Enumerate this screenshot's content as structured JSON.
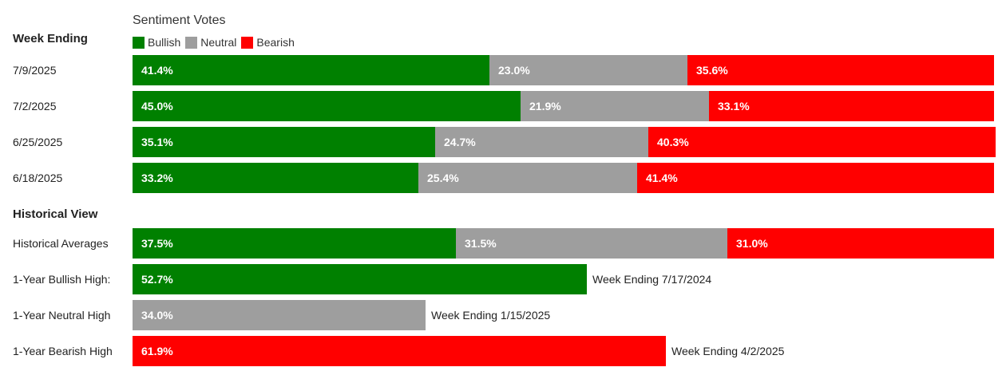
{
  "chart_data": {
    "type": "bar",
    "orientation": "horizontal",
    "stacked": true,
    "title": "Sentiment Votes",
    "category_axis_label": "Week Ending",
    "legend": {
      "placement": "top-left",
      "entries": [
        {
          "name": "Bullish",
          "color": "#008000"
        },
        {
          "name": "Neutral",
          "color": "#9e9e9e"
        },
        {
          "name": "Bearish",
          "color": "#ff0000"
        }
      ]
    },
    "xlim": [
      0,
      100
    ],
    "grid": false,
    "weekly": [
      {
        "label": "7/9/2025",
        "values": [
          {
            "series": "Bullish",
            "value": 41.4,
            "text": "41.4%"
          },
          {
            "series": "Neutral",
            "value": 23.0,
            "text": "23.0%"
          },
          {
            "series": "Bearish",
            "value": 35.6,
            "text": "35.6%"
          }
        ]
      },
      {
        "label": "7/2/2025",
        "values": [
          {
            "series": "Bullish",
            "value": 45.0,
            "text": "45.0%"
          },
          {
            "series": "Neutral",
            "value": 21.9,
            "text": "21.9%"
          },
          {
            "series": "Bearish",
            "value": 33.1,
            "text": "33.1%"
          }
        ]
      },
      {
        "label": "6/25/2025",
        "values": [
          {
            "series": "Bullish",
            "value": 35.1,
            "text": "35.1%"
          },
          {
            "series": "Neutral",
            "value": 24.7,
            "text": "24.7%"
          },
          {
            "series": "Bearish",
            "value": 40.3,
            "text": "40.3%"
          }
        ]
      },
      {
        "label": "6/18/2025",
        "values": [
          {
            "series": "Bullish",
            "value": 33.2,
            "text": "33.2%"
          },
          {
            "series": "Neutral",
            "value": 25.4,
            "text": "25.4%"
          },
          {
            "series": "Bearish",
            "value": 41.4,
            "text": "41.4%"
          }
        ]
      }
    ],
    "historical_title": "Historical View",
    "historical": [
      {
        "label": "Historical Averages",
        "values": [
          {
            "series": "Bullish",
            "value": 37.5,
            "text": "37.5%"
          },
          {
            "series": "Neutral",
            "value": 31.5,
            "text": "31.5%"
          },
          {
            "series": "Bearish",
            "value": 31.0,
            "text": "31.0%"
          }
        ]
      },
      {
        "label": "1-Year Bullish High:",
        "values": [
          {
            "series": "Bullish",
            "value": 52.7,
            "text": "52.7%"
          }
        ],
        "note": "Week Ending 7/17/2024"
      },
      {
        "label": "1-Year Neutral High",
        "values": [
          {
            "series": "Neutral",
            "value": 34.0,
            "text": "34.0%"
          }
        ],
        "note": "Week Ending 1/15/2025"
      },
      {
        "label": "1-Year Bearish High",
        "values": [
          {
            "series": "Bearish",
            "value": 61.9,
            "text": "61.9%"
          }
        ],
        "note": "Week Ending 4/2/2025"
      }
    ]
  }
}
